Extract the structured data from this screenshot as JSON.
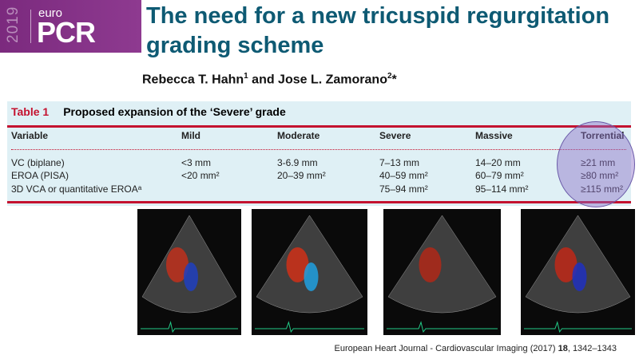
{
  "logo": {
    "year": "2019",
    "euro": "euro",
    "pcr": "PCR"
  },
  "title": {
    "line1": "The need for a new tricuspid regurgitation",
    "line2": "grading scheme"
  },
  "authors": {
    "a1": "Rebecca T. Hahn",
    "s1": "1",
    "and": " and Jose L. Zamorano",
    "s2": "2",
    "star": "*"
  },
  "table": {
    "label": "Table 1",
    "caption": "Proposed expansion of the ‘Severe’ grade",
    "headers": [
      "Variable",
      "Mild",
      "Moderate",
      "Severe",
      "Massive",
      "Torrential"
    ],
    "rows": [
      [
        "VC (biplane)",
        "<3 mm",
        "3-6.9 mm",
        "7–13 mm",
        "14–20 mm",
        "≥21 mm"
      ],
      [
        "EROA (PISA)",
        "<20 mm²",
        "20–39 mm²",
        "40–59 mm²",
        "60–79 mm²",
        "≥80 mm²"
      ],
      [
        "3D VCA or quantitative EROAᵃ",
        "",
        "",
        "75–94 mm²",
        "95–114 mm²",
        "≥115 mm²"
      ]
    ],
    "accent": "#c4122f",
    "highlight": "#8c6ec8"
  },
  "images": [
    "echo-mild",
    "echo-moderate",
    "echo-severe",
    "echo-torrential"
  ],
  "footer": {
    "journal": "European Heart Journal - Cardiovascular Imaging (2017) ",
    "vol": "18",
    "pages": ", 1342–1343"
  }
}
